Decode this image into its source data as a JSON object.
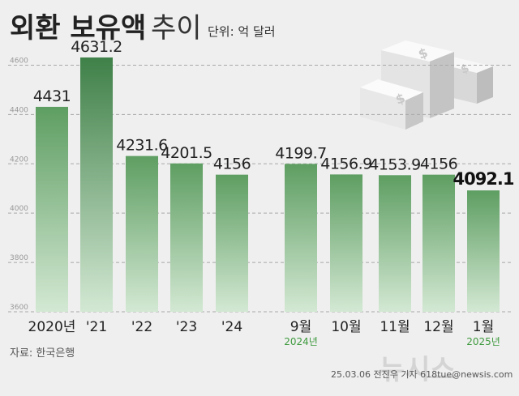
{
  "header": {
    "title_bold": "외환 보유액",
    "title_light": "추이",
    "unit": "단위: 억 달러"
  },
  "footer": {
    "source": "자료: 한국은행",
    "credit": "25.03.06 전진우 기자 618tue@newsis.com",
    "watermark": "뉴시스"
  },
  "colors": {
    "bar_top": "#5e9e62",
    "bar_bottom": "#cfe6cf",
    "bar_highlight": "#3f8048",
    "year_text": "#3e9a3e"
  },
  "chart_data": {
    "type": "bar",
    "ylim": [
      3600,
      4700
    ],
    "yticks": [
      "3600",
      "3800",
      "4000",
      "4200",
      "4400",
      "4600"
    ],
    "grid": true,
    "xlabel": "",
    "ylabel": "",
    "categories": [
      "2020년",
      "'21",
      "'22",
      "'23",
      "'24",
      "9월",
      "10월",
      "11월",
      "12월",
      "1월"
    ],
    "values": [
      4431,
      4631.2,
      4231.6,
      4201.5,
      4156,
      4199.7,
      4156.9,
      4153.9,
      4156,
      4092.1
    ],
    "value_labels": [
      "4431",
      "4631.2",
      "4231.6",
      "4201.5",
      "4156",
      "4199.7",
      "4156.9",
      "4153.9",
      "4156",
      "4092.1"
    ],
    "year_markers": [
      {
        "index": 5,
        "label": "2024년"
      },
      {
        "index": 9,
        "label": "2025년"
      }
    ],
    "highlight_index": 1,
    "bold_label_index": 9
  }
}
